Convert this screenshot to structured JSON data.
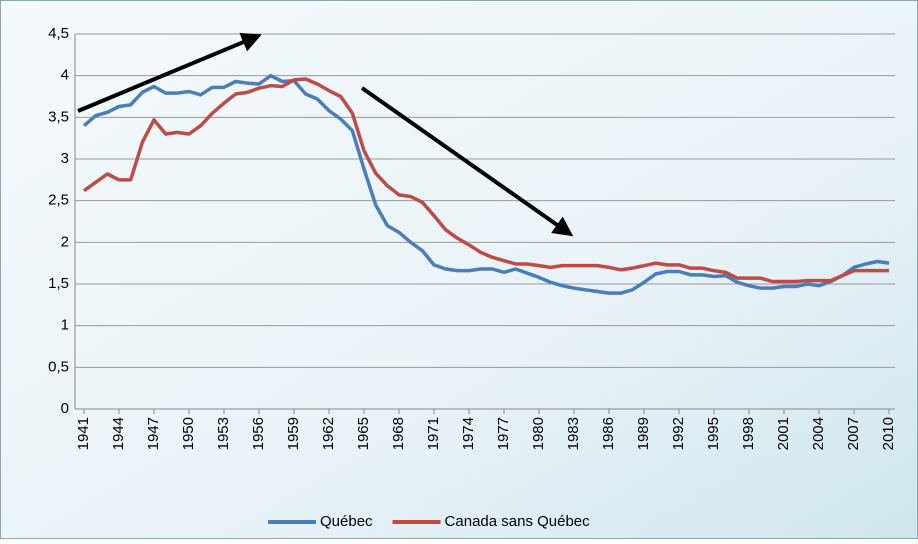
{
  "chart_data": {
    "type": "line",
    "x": [
      1941,
      1942,
      1943,
      1944,
      1945,
      1946,
      1947,
      1948,
      1949,
      1950,
      1951,
      1952,
      1953,
      1954,
      1955,
      1956,
      1957,
      1958,
      1959,
      1960,
      1961,
      1962,
      1963,
      1964,
      1965,
      1966,
      1967,
      1968,
      1969,
      1970,
      1971,
      1972,
      1973,
      1974,
      1975,
      1976,
      1977,
      1978,
      1979,
      1980,
      1981,
      1982,
      1983,
      1984,
      1985,
      1986,
      1987,
      1988,
      1989,
      1990,
      1991,
      1992,
      1993,
      1994,
      1995,
      1996,
      1997,
      1998,
      1999,
      2000,
      2001,
      2002,
      2003,
      2004,
      2005,
      2006,
      2007,
      2008,
      2009,
      2010
    ],
    "series": [
      {
        "name": "Québec",
        "color": "#4a7ebb",
        "values": [
          3.4,
          3.52,
          3.56,
          3.63,
          3.65,
          3.8,
          3.87,
          3.79,
          3.79,
          3.81,
          3.77,
          3.86,
          3.86,
          3.93,
          3.91,
          3.9,
          4.0,
          3.93,
          3.94,
          3.78,
          3.72,
          3.58,
          3.48,
          3.34,
          2.88,
          2.45,
          2.2,
          2.12,
          2.0,
          1.9,
          1.73,
          1.68,
          1.66,
          1.66,
          1.68,
          1.68,
          1.64,
          1.68,
          1.63,
          1.58,
          1.52,
          1.48,
          1.45,
          1.43,
          1.41,
          1.39,
          1.39,
          1.43,
          1.52,
          1.62,
          1.65,
          1.65,
          1.61,
          1.61,
          1.59,
          1.6,
          1.52,
          1.48,
          1.45,
          1.45,
          1.47,
          1.47,
          1.5,
          1.48,
          1.53,
          1.6,
          1.7,
          1.74,
          1.77,
          1.75
        ]
      },
      {
        "name": "Canada sans Québec",
        "color": "#be4b48",
        "values": [
          2.62,
          2.72,
          2.82,
          2.75,
          2.75,
          3.2,
          3.47,
          3.3,
          3.32,
          3.3,
          3.4,
          3.55,
          3.67,
          3.78,
          3.8,
          3.85,
          3.88,
          3.87,
          3.95,
          3.96,
          3.9,
          3.82,
          3.75,
          3.55,
          3.1,
          2.83,
          2.68,
          2.57,
          2.55,
          2.48,
          2.32,
          2.15,
          2.05,
          1.97,
          1.88,
          1.82,
          1.78,
          1.74,
          1.74,
          1.72,
          1.7,
          1.72,
          1.72,
          1.72,
          1.72,
          1.7,
          1.67,
          1.69,
          1.72,
          1.75,
          1.73,
          1.73,
          1.69,
          1.69,
          1.66,
          1.64,
          1.57,
          1.57,
          1.57,
          1.53,
          1.53,
          1.53,
          1.54,
          1.54,
          1.54,
          1.6,
          1.66,
          1.66,
          1.66,
          1.66
        ]
      }
    ],
    "xlim": [
      1941,
      2010
    ],
    "xticks": [
      1941,
      1944,
      1947,
      1950,
      1953,
      1956,
      1959,
      1962,
      1965,
      1968,
      1971,
      1974,
      1977,
      1980,
      1983,
      1986,
      1989,
      1992,
      1995,
      1998,
      2001,
      2004,
      2007,
      2010
    ],
    "ylim": [
      0,
      4.5
    ],
    "yticks": [
      0,
      {
        "value": 0.5,
        "label": "0,5"
      },
      1,
      {
        "value": 1.5,
        "label": "1,5"
      },
      2,
      {
        "value": 2.5,
        "label": "2,5"
      },
      3,
      {
        "value": 3.5,
        "label": "3,5"
      },
      4,
      {
        "value": 4.5,
        "label": "4,5"
      }
    ],
    "grid": true,
    "legend": "bottom"
  }
}
